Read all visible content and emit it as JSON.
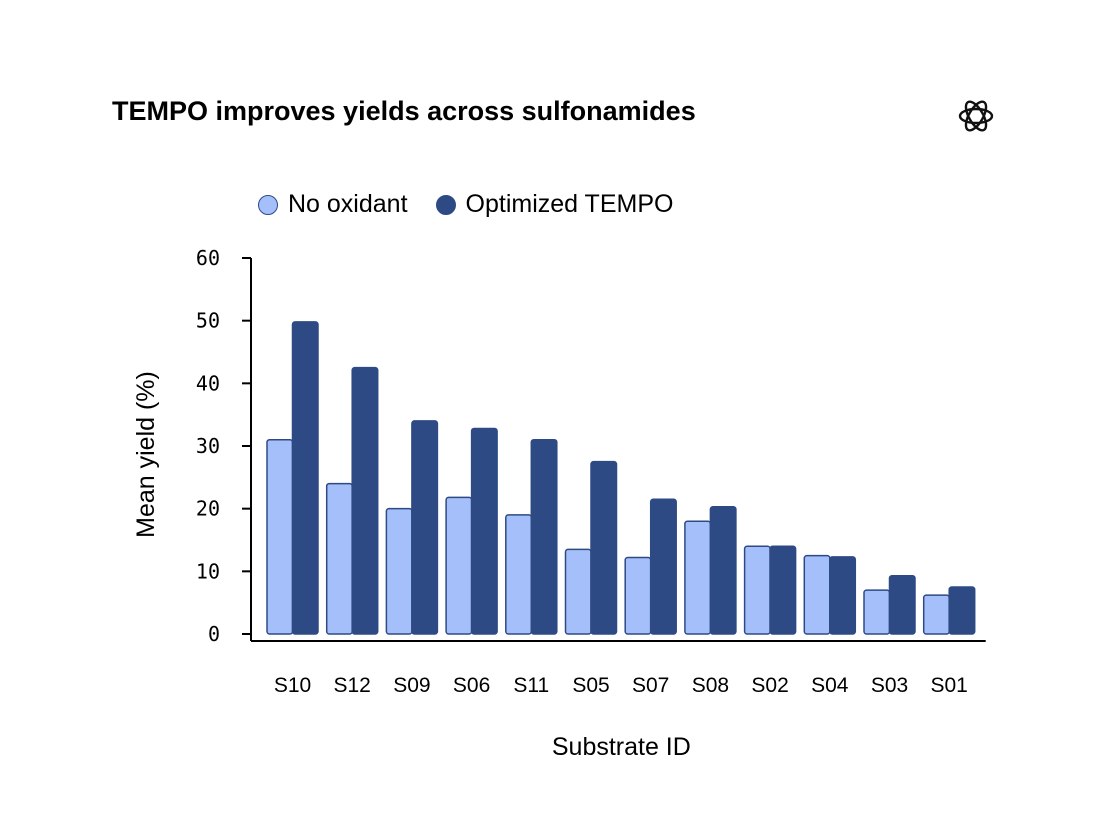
{
  "chart_data": {
    "type": "bar",
    "title": "TEMPO improves yields across sulfonamides",
    "xlabel": "Substrate ID",
    "ylabel": "Mean yield (%)",
    "ylim": [
      0,
      60
    ],
    "yticks": [
      "0",
      "10",
      "20",
      "30",
      "40",
      "50",
      "60"
    ],
    "categories": [
      "S10",
      "S12",
      "S09",
      "S06",
      "S11",
      "S05",
      "S07",
      "S08",
      "S02",
      "S04",
      "S03",
      "S01"
    ],
    "series": [
      {
        "name": "No oxidant",
        "color": "#a5bffa",
        "values": [
          31.0,
          24.0,
          20.0,
          21.8,
          19.0,
          13.5,
          12.2,
          18.0,
          14.0,
          12.5,
          7.0,
          6.2
        ]
      },
      {
        "name": "Optimized TEMPO",
        "color": "#2e4a84",
        "values": [
          49.8,
          42.5,
          34.0,
          32.8,
          31.0,
          27.5,
          21.5,
          20.3,
          14.0,
          12.3,
          9.3,
          7.5
        ]
      }
    ],
    "legend_position": "top-left",
    "grid": false
  },
  "logo": {
    "icon": "openai-logo-icon"
  }
}
